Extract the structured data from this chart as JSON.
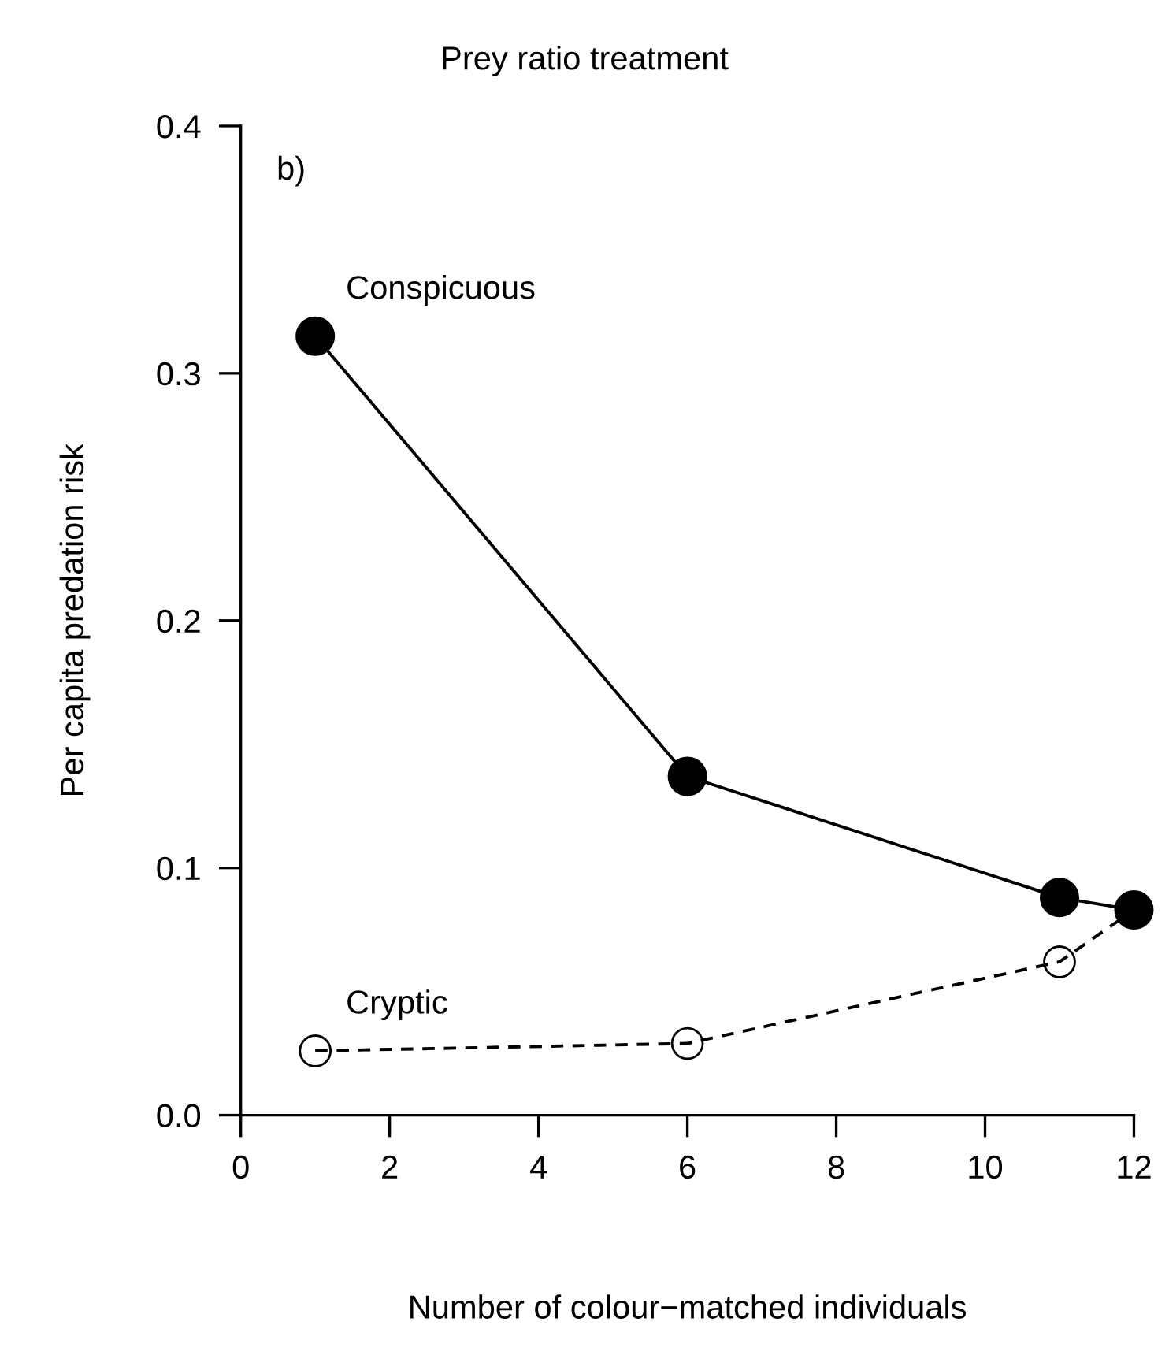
{
  "chart_data": {
    "type": "line",
    "title": "Prey ratio treatment",
    "xlabel": "Number of colour−matched individuals",
    "ylabel": "Per capita predation risk",
    "annotations": [
      "b)"
    ],
    "x": [
      1,
      6,
      11,
      12
    ],
    "series": [
      {
        "name": "Conspicuous",
        "color": "#000000",
        "values": [
          0.315,
          0.137,
          0.088,
          0.083
        ],
        "marker": "circle",
        "line_style": "solid"
      },
      {
        "name": "Cryptic",
        "color": "#000000",
        "values": [
          0.026,
          0.029,
          0.062,
          0.083
        ],
        "marker": "circle",
        "line_style": "dashed"
      }
    ],
    "xlim": [
      0,
      12
    ],
    "ylim": [
      0,
      0.4
    ],
    "xticks": [
      0,
      2,
      4,
      6,
      8,
      10,
      12
    ],
    "yticks": [
      {
        "value": 0,
        "label": "0.0"
      },
      {
        "value": 0.1,
        "label": "0.1"
      },
      {
        "value": 0.2,
        "label": "0.2"
      },
      {
        "value": 0.3,
        "label": "0.3"
      },
      {
        "value": 0.4,
        "label": "0.4"
      }
    ],
    "grid": false,
    "legend": false
  }
}
